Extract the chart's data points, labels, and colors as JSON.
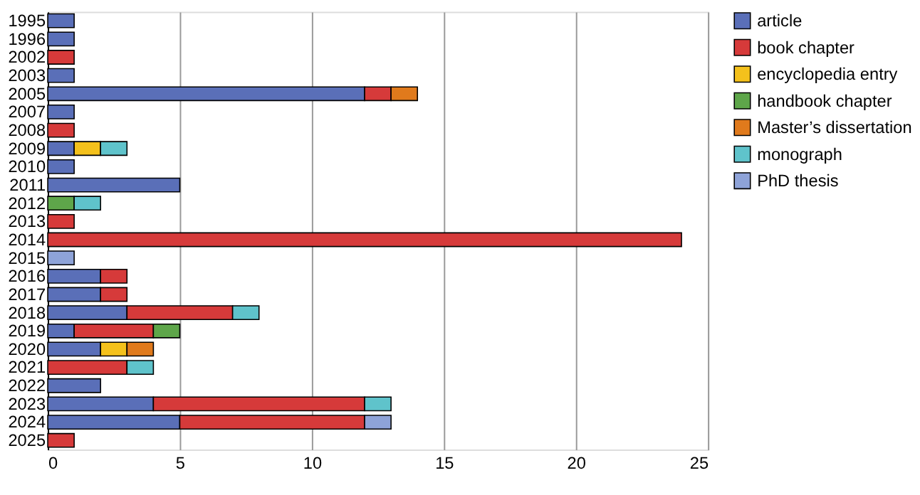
{
  "chart_data": {
    "type": "bar",
    "orientation": "horizontal",
    "stacked": true,
    "categories": [
      "1995",
      "1996",
      "2002",
      "2003",
      "2005",
      "2007",
      "2008",
      "2009",
      "2010",
      "2011",
      "2012",
      "2013",
      "2014",
      "2015",
      "2016",
      "2017",
      "2018",
      "2019",
      "2020",
      "2021",
      "2022",
      "2023",
      "2024",
      "2025"
    ],
    "series": [
      {
        "name": "article",
        "color": "#5a6fb8",
        "values": [
          1,
          1,
          null,
          1,
          12,
          1,
          null,
          1,
          1,
          5,
          null,
          null,
          null,
          null,
          2,
          2,
          3,
          1,
          2,
          null,
          2,
          4,
          5,
          null
        ]
      },
      {
        "name": "book chapter",
        "color": "#d63a3a",
        "values": [
          null,
          null,
          1,
          null,
          1,
          null,
          1,
          null,
          null,
          null,
          null,
          1,
          24,
          null,
          1,
          1,
          4,
          3,
          null,
          3,
          null,
          8,
          7,
          1
        ]
      },
      {
        "name": "encyclopedia entry",
        "color": "#f4c11c",
        "values": [
          null,
          null,
          null,
          null,
          null,
          null,
          null,
          1,
          null,
          null,
          null,
          null,
          null,
          null,
          null,
          null,
          null,
          null,
          1,
          null,
          null,
          null,
          null,
          null
        ]
      },
      {
        "name": "handbook chapter",
        "color": "#5ea64a",
        "values": [
          null,
          null,
          null,
          null,
          null,
          null,
          null,
          null,
          null,
          null,
          1,
          null,
          null,
          null,
          null,
          null,
          null,
          1,
          null,
          null,
          null,
          null,
          null,
          null
        ]
      },
      {
        "name": "Master’s dissertation",
        "color": "#e07a1c",
        "values": [
          null,
          null,
          null,
          null,
          1,
          null,
          null,
          null,
          null,
          null,
          null,
          null,
          null,
          null,
          null,
          null,
          null,
          null,
          1,
          null,
          null,
          null,
          null,
          null
        ]
      },
      {
        "name": "monograph",
        "color": "#5fc3cb",
        "values": [
          null,
          null,
          null,
          null,
          null,
          null,
          null,
          1,
          null,
          null,
          1,
          null,
          null,
          null,
          null,
          null,
          1,
          null,
          null,
          1,
          null,
          1,
          null,
          null
        ]
      },
      {
        "name": "PhD thesis",
        "color": "#8ea3d8",
        "values": [
          null,
          null,
          null,
          null,
          null,
          null,
          null,
          null,
          null,
          null,
          null,
          null,
          null,
          1,
          null,
          null,
          null,
          null,
          null,
          null,
          null,
          null,
          1,
          null
        ]
      }
    ],
    "xlim": [
      0,
      25
    ],
    "xticks": [
      0,
      5,
      10,
      15,
      20,
      25
    ],
    "grid": "x",
    "legend": "top right"
  }
}
